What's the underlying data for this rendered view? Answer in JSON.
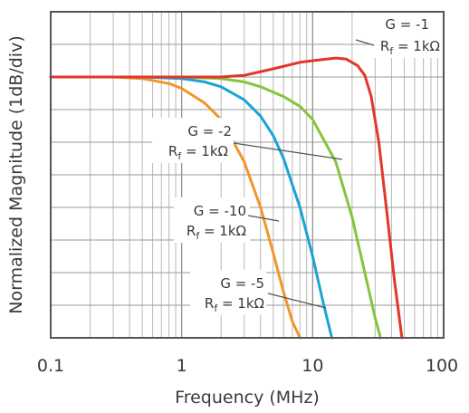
{
  "chart_data": {
    "type": "line",
    "title": "",
    "xlabel": "Frequency (MHz)",
    "ylabel": "Normalized Magnitude (1dB/div)",
    "xscale": "log",
    "xlim": [
      0.1,
      100
    ],
    "ylim": [
      -8,
      2
    ],
    "x_ticks": [
      "0.1",
      "1",
      "10",
      "100"
    ],
    "grid": true,
    "series": [
      {
        "color": "#f0962a",
        "x": [
          0.1,
          0.3,
          0.5,
          0.8,
          1,
          1.5,
          2,
          3,
          4,
          5,
          6,
          7,
          8
        ],
        "y": [
          0,
          0,
          -0.05,
          -0.2,
          -0.35,
          -0.8,
          -1.3,
          -2.6,
          -4.0,
          -5.4,
          -6.6,
          -7.5,
          -8
        ]
      },
      {
        "color": "#1aa4d6",
        "x": [
          0.1,
          0.5,
          1,
          1.5,
          2,
          3,
          4,
          5,
          6,
          8,
          10,
          12,
          14
        ],
        "y": [
          0,
          0,
          -0.05,
          -0.15,
          -0.3,
          -0.7,
          -1.2,
          -1.8,
          -2.5,
          -4.0,
          -5.5,
          -6.9,
          -8
        ]
      },
      {
        "color": "#86c440",
        "x": [
          0.1,
          1,
          2,
          3,
          4,
          6,
          8,
          10,
          15,
          20,
          25,
          30,
          33
        ],
        "y": [
          0,
          0,
          -0.05,
          -0.15,
          -0.3,
          -0.6,
          -0.9,
          -1.3,
          -2.6,
          -4.3,
          -6.0,
          -7.4,
          -8
        ]
      },
      {
        "color": "#e2362a",
        "x": [
          0.1,
          1,
          2,
          3,
          5,
          8,
          10,
          15,
          18,
          22,
          25,
          28,
          32,
          37,
          42,
          48
        ],
        "y": [
          0,
          0,
          0,
          0.05,
          0.25,
          0.45,
          0.5,
          0.58,
          0.55,
          0.35,
          0.05,
          -0.6,
          -2.0,
          -4.2,
          -6.2,
          -8
        ]
      }
    ],
    "annotations": [
      {
        "gain": "G = -1",
        "rf_r": "R",
        "rf_sub": "f",
        "rf_value": " = 1kΩ"
      },
      {
        "gain": "G = -2",
        "rf_r": "R",
        "rf_sub": "f",
        "rf_value": " = 1kΩ"
      },
      {
        "gain": "G = -10",
        "rf_r": "R",
        "rf_sub": "f",
        "rf_value": " = 1kΩ"
      },
      {
        "gain": "G = -5",
        "rf_r": "R",
        "rf_sub": "f",
        "rf_value": " = 1kΩ"
      }
    ],
    "watermark_color": "#e8442e"
  }
}
